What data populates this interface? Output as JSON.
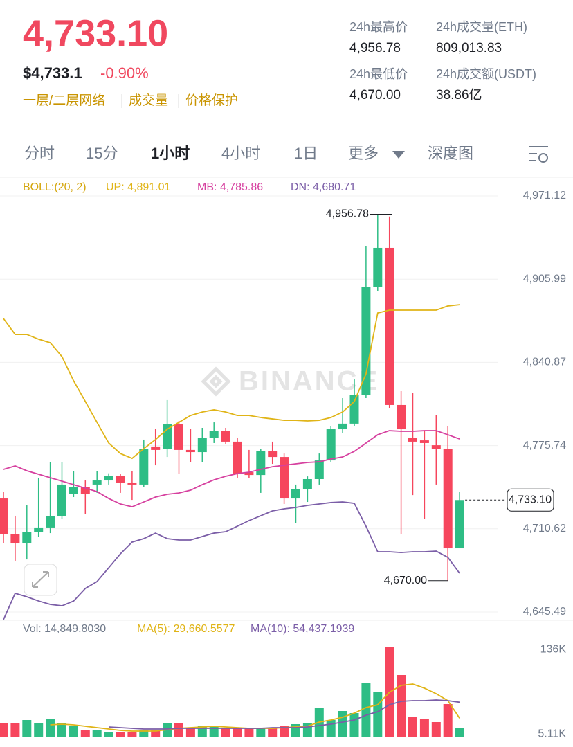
{
  "header": {
    "price": "4,733.10",
    "usd_price": "$4,733.1",
    "change": "-0.90%",
    "links": [
      "一层/二层网络",
      "成交量",
      "价格保护"
    ]
  },
  "stats": [
    {
      "label": "24h最高价",
      "value": "4,956.78"
    },
    {
      "label": "24h成交量(ETH)",
      "value": "809,013.83"
    },
    {
      "label": "24h最低价",
      "value": "4,670.00"
    },
    {
      "label": "24h成交额(USDT)",
      "value": "38.86亿"
    }
  ],
  "tabs": [
    "分时",
    "15分",
    "1小时",
    "4小时",
    "1日",
    "更多",
    "深度图"
  ],
  "watermark": "BINANCE",
  "chart_data": [
    {
      "type": "candlestick",
      "indicator": "BOLL:(20, 2)",
      "up_color": "#2ebd85",
      "down_color": "#f6465d",
      "ylim": [
        4639.5,
        4982.5
      ],
      "yticks": [
        {
          "value": 4971.12,
          "label": "4,971.12"
        },
        {
          "value": 4905.99,
          "label": "4,905.99"
        },
        {
          "value": 4840.87,
          "label": "4,840.87"
        },
        {
          "value": 4775.74,
          "label": "4,775.74"
        },
        {
          "value": 4710.62,
          "label": "4,710.62"
        },
        {
          "value": 4645.49,
          "label": "4,645.49"
        }
      ],
      "grid": true,
      "open": [
        4734.3,
        4706.2,
        4699.1,
        4708.3,
        4711.6,
        4720.3,
        4737.6,
        4743.5,
        4745.2,
        4748.4,
        4752.2,
        4746.8,
        4745.2,
        4775.0,
        4773.3,
        4792.3,
        4772.3,
        4770.6,
        4782.0,
        4786.9,
        4778.8,
        4754.9,
        4752.7,
        4771.2,
        4766.8,
        4734.3,
        4741.9,
        4749.5,
        4764.1,
        4788.5,
        4792.9,
        4815.6,
        4899.6,
        4930.5,
        4807.5,
        4781.5,
        4779.8,
        4776.0,
        4773.3,
        4695.3
      ],
      "high": [
        4739.7,
        4720.8,
        4728.9,
        4750.6,
        4762.5,
        4762.5,
        4756.0,
        4748.4,
        4756.0,
        4754.0,
        4753.3,
        4756.0,
        4780.4,
        4788.9,
        4811.3,
        4795.0,
        4788.5,
        4789.6,
        4793.9,
        4789.6,
        4781.5,
        4772.3,
        4773.3,
        4778.8,
        4769.5,
        4745.2,
        4751.6,
        4769.5,
        4791.2,
        4812.9,
        4827.5,
        4932.1,
        4956.78,
        4955.0,
        4818.3,
        4816.7,
        4787.4,
        4799.4,
        4791.2,
        4739.7
      ],
      "low": [
        4699.1,
        4685.6,
        4686.6,
        4704.5,
        4707.2,
        4718.1,
        4735.4,
        4722.4,
        4738.7,
        4745.2,
        4738.7,
        4733.2,
        4743.5,
        4760.3,
        4766.8,
        4753.3,
        4762.5,
        4762.5,
        4777.7,
        4776.6,
        4750.6,
        4750.6,
        4738.7,
        4761.4,
        4730.0,
        4715.3,
        4731.6,
        4745.2,
        4762.5,
        4785.8,
        4791.2,
        4812.9,
        4896.9,
        4804.8,
        4706.2,
        4737.0,
        4718.1,
        4745.2,
        4670.0,
        4695.3
      ],
      "close": [
        4706.2,
        4699.1,
        4708.3,
        4711.6,
        4720.3,
        4745.2,
        4743.0,
        4737.6,
        4748.4,
        4752.2,
        4746.8,
        4745.2,
        4773.3,
        4772.3,
        4792.3,
        4772.3,
        4770.6,
        4782.0,
        4786.9,
        4778.8,
        4753.3,
        4752.7,
        4771.2,
        4766.8,
        4734.3,
        4741.9,
        4749.5,
        4764.1,
        4788.5,
        4792.9,
        4815.6,
        4899.6,
        4930.5,
        4807.5,
        4788.5,
        4778.8,
        4777.7,
        4773.3,
        4695.3,
        4733.1
      ],
      "series": [
        {
          "name": "UP: 4,891.01",
          "color": "#e0b417",
          "values": [
            4875.2,
            4862.7,
            4862.7,
            4859.0,
            4856.2,
            4845.4,
            4826.4,
            4810.2,
            4793.9,
            4777.7,
            4769.5,
            4765.7,
            4773.3,
            4780.4,
            4788.5,
            4793.9,
            4799.3,
            4802.0,
            4803.7,
            4802.0,
            4799.3,
            4799.3,
            4797.7,
            4796.6,
            4795.5,
            4795.5,
            4795.0,
            4795.5,
            4797.7,
            4802.0,
            4810.2,
            4831.9,
            4879.5,
            4881.7,
            4881.7,
            4881.7,
            4881.7,
            4881.7,
            4885.0,
            4886.0
          ]
        },
        {
          "name": "MB: 4,785.86",
          "color": "#d6409f",
          "values": [
            4757.1,
            4759.8,
            4756.0,
            4753.3,
            4750.6,
            4747.9,
            4745.1,
            4742.4,
            4739.7,
            4734.3,
            4730.0,
            4727.8,
            4731.6,
            4735.4,
            4737.6,
            4738.6,
            4740.8,
            4745.1,
            4748.9,
            4751.7,
            4753.8,
            4754.9,
            4757.1,
            4759.2,
            4760.3,
            4761.4,
            4762.5,
            4763.0,
            4765.2,
            4766.8,
            4771.2,
            4777.7,
            4784.2,
            4787.4,
            4786.9,
            4786.9,
            4787.4,
            4787.4,
            4784.2,
            4780.9
          ]
        },
        {
          "name": "DN: 4,680.71",
          "color": "#7b5ea7",
          "values": [
            4639.5,
            4660.1,
            4657.4,
            4654.1,
            4651.4,
            4650.3,
            4654.1,
            4663.9,
            4669.3,
            4680.1,
            4691.0,
            4700.2,
            4702.9,
            4707.2,
            4702.9,
            4701.8,
            4701.8,
            4704.5,
            4707.2,
            4708.3,
            4712.6,
            4717.0,
            4720.8,
            4724.6,
            4726.2,
            4727.3,
            4728.9,
            4730.0,
            4731.1,
            4731.6,
            4730.5,
            4712.6,
            4692.6,
            4692.6,
            4692.0,
            4692.6,
            4692.6,
            4693.1,
            4688.2,
            4675.8
          ]
        }
      ],
      "annotations": [
        {
          "text": "4,956.78",
          "value": 4956.78
        },
        {
          "text": "4,670.00",
          "value": 4670.0
        },
        {
          "text": "4,733.10",
          "value": 4733.1
        }
      ]
    },
    {
      "type": "bar",
      "label": "Vol: 14,849.8030",
      "ylim": [
        0,
        145000
      ],
      "yticks": [
        {
          "value": 136000,
          "label": "136K"
        },
        {
          "value": 5110,
          "label": "5.11K"
        }
      ],
      "values": [
        21480,
        21480,
        26850,
        21480,
        29000,
        21480,
        18260,
        10740,
        10740,
        8590,
        7520,
        7520,
        10740,
        10740,
        21480,
        21480,
        13960,
        18260,
        16110,
        13960,
        13960,
        13960,
        13960,
        13960,
        18260,
        20410,
        21480,
        45110,
        26850,
        40810,
        37590,
        83770,
        69810,
        140000,
        96660,
        32220,
        29000,
        23630,
        51550,
        14849.8
      ],
      "series": [
        {
          "name": "MA(5): 29,660.5577",
          "color": "#e0b417",
          "values": [
            null,
            null,
            null,
            null,
            19330,
            20410,
            19330,
            17180,
            15040,
            12890,
            10740,
            9670,
            9670,
            9670,
            11810,
            13960,
            15040,
            16110,
            17180,
            16110,
            15040,
            13960,
            13960,
            13960,
            15040,
            16110,
            17180,
            23630,
            26850,
            31150,
            37590,
            46180,
            50480,
            69810,
            80550,
            82700,
            76250,
            67660,
            56920,
            29660.6
          ]
        },
        {
          "name": "MA(10): 54,437.1939",
          "color": "#7b5ea7",
          "values": [
            null,
            null,
            null,
            null,
            null,
            null,
            null,
            null,
            null,
            16110,
            15040,
            13960,
            12890,
            12890,
            12890,
            13960,
            13960,
            13960,
            13960,
            13960,
            13960,
            13960,
            13960,
            15040,
            15040,
            15040,
            16110,
            18260,
            20410,
            23630,
            26850,
            34370,
            39740,
            50480,
            55850,
            56920,
            56920,
            58000,
            56920,
            54437.2
          ]
        }
      ]
    }
  ]
}
